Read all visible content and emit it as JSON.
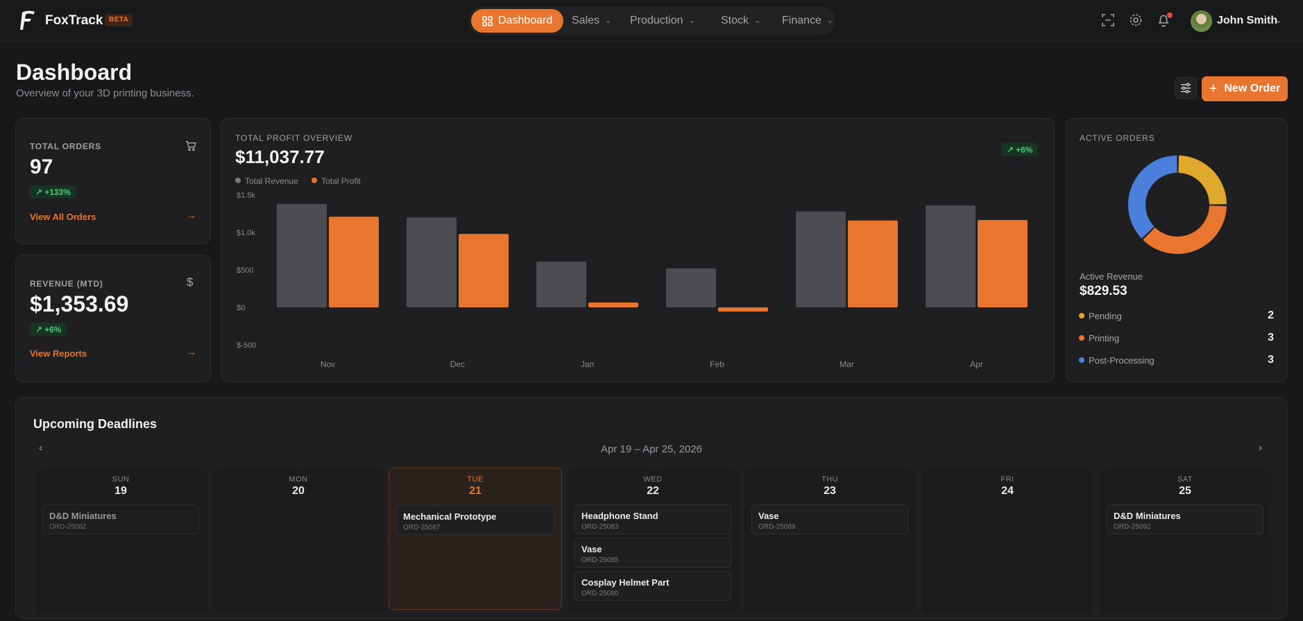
{
  "app": {
    "name": "FoxTrack",
    "badge": "BETA"
  },
  "nav": [
    {
      "label": "Dashboard",
      "active": true
    },
    {
      "label": "Sales"
    },
    {
      "label": "Production"
    },
    {
      "label": "Stock"
    },
    {
      "label": "Finance"
    }
  ],
  "user": {
    "name": "John Smith"
  },
  "page": {
    "title": "Dashboard",
    "subtitle": "Overview of your 3D printing business.",
    "new_order_label": "New Order"
  },
  "kpis": {
    "orders": {
      "label": "TOTAL ORDERS",
      "value": "97",
      "change": "+133%",
      "link": "View All Orders"
    },
    "revenue": {
      "label": "REVENUE (MTD)",
      "value": "$1,353.69",
      "change": "+6%",
      "link": "View Reports"
    }
  },
  "profit": {
    "label": "TOTAL PROFIT OVERVIEW",
    "value": "$11,037.77",
    "change": "+6%"
  },
  "chart_data": {
    "type": "bar",
    "categories": [
      "Nov",
      "Dec",
      "Jan",
      "Feb",
      "Mar",
      "Apr"
    ],
    "series": [
      {
        "name": "Total Revenue",
        "color": "#4b4d52",
        "values": [
          1380,
          1200,
          610,
          520,
          1280,
          1360
        ]
      },
      {
        "name": "Total Profit",
        "color": "#e9762f",
        "values": [
          1210,
          980,
          65,
          -55,
          1160,
          1165
        ]
      }
    ],
    "yticks": [
      "$1.5k",
      "$1.0k",
      "$500",
      "$0",
      "$-500"
    ],
    "ylim": [
      -500,
      1500
    ]
  },
  "active_orders": {
    "label": "ACTIVE ORDERS",
    "revenue_label": "Active Revenue",
    "revenue_value": "$829.53",
    "items": [
      {
        "label": "Pending",
        "count": "2",
        "color": "#e0a92c"
      },
      {
        "label": "Printing",
        "count": "3",
        "color": "#e9762f"
      },
      {
        "label": "Post-Processing",
        "count": "3",
        "color": "#4a80db"
      }
    ]
  },
  "deadlines": {
    "title": "Upcoming Deadlines",
    "range": "Apr 19 – Apr 25, 2026",
    "days": [
      {
        "name": "SUN",
        "num": "19",
        "tasks": [
          {
            "name": "D&D Miniatures",
            "id": "ORD-25082"
          }
        ]
      },
      {
        "name": "MON",
        "num": "20",
        "tasks": []
      },
      {
        "name": "TUE",
        "num": "21",
        "tasks": [
          {
            "name": "Mechanical Prototype",
            "id": "ORD-25087"
          }
        ]
      },
      {
        "name": "WED",
        "num": "22",
        "tasks": [
          {
            "name": "Headphone Stand",
            "id": "ORD-25083"
          },
          {
            "name": "Vase",
            "id": "ORD-25085"
          },
          {
            "name": "Cosplay Helmet Part",
            "id": "ORD-25080"
          }
        ]
      },
      {
        "name": "THU",
        "num": "23",
        "tasks": [
          {
            "name": "Vase",
            "id": "ORD-25089"
          }
        ]
      },
      {
        "name": "FRI",
        "num": "24",
        "tasks": []
      },
      {
        "name": "SAT",
        "num": "25",
        "tasks": [
          {
            "name": "D&D Miniatures",
            "id": "ORD-25092"
          }
        ]
      }
    ]
  }
}
